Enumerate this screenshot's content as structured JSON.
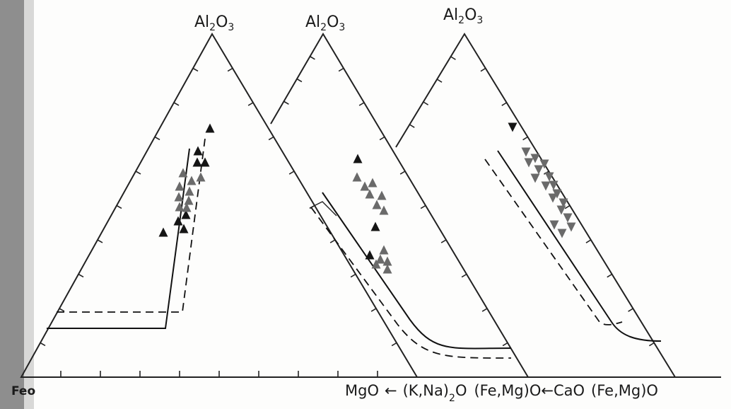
{
  "apex_labels": [
    {
      "main": "Al",
      "sub1": "2",
      "mid": "O",
      "sub2": "3"
    },
    {
      "main": "Al",
      "sub1": "2",
      "mid": "O",
      "sub2": "3"
    },
    {
      "main": "Al",
      "sub1": "2",
      "mid": "O",
      "sub2": "3"
    }
  ],
  "corner_label": "Feo",
  "base_labels": {
    "mgo_part": "MgO",
    "arrow1": "←",
    "kna_part": "(K,Na)",
    "kna_sub": "2",
    "kna_tail": "O",
    "femg1": "(Fe,Mg)O",
    "arrow2": "←",
    "cao": "CaO",
    "femg2": "(Fe,Mg)O"
  },
  "diagrams": [
    {
      "name": "Al2O3-FeO-MgO",
      "marker_color": "#151515"
    },
    {
      "name": "Al2O3-(Fe,Mg)O-(K,Na)2O",
      "marker_color": "#6a6a6a"
    },
    {
      "name": "Al2O3-(Fe,Mg)O-CaO",
      "marker_color": "#6a6a6a"
    }
  ]
}
